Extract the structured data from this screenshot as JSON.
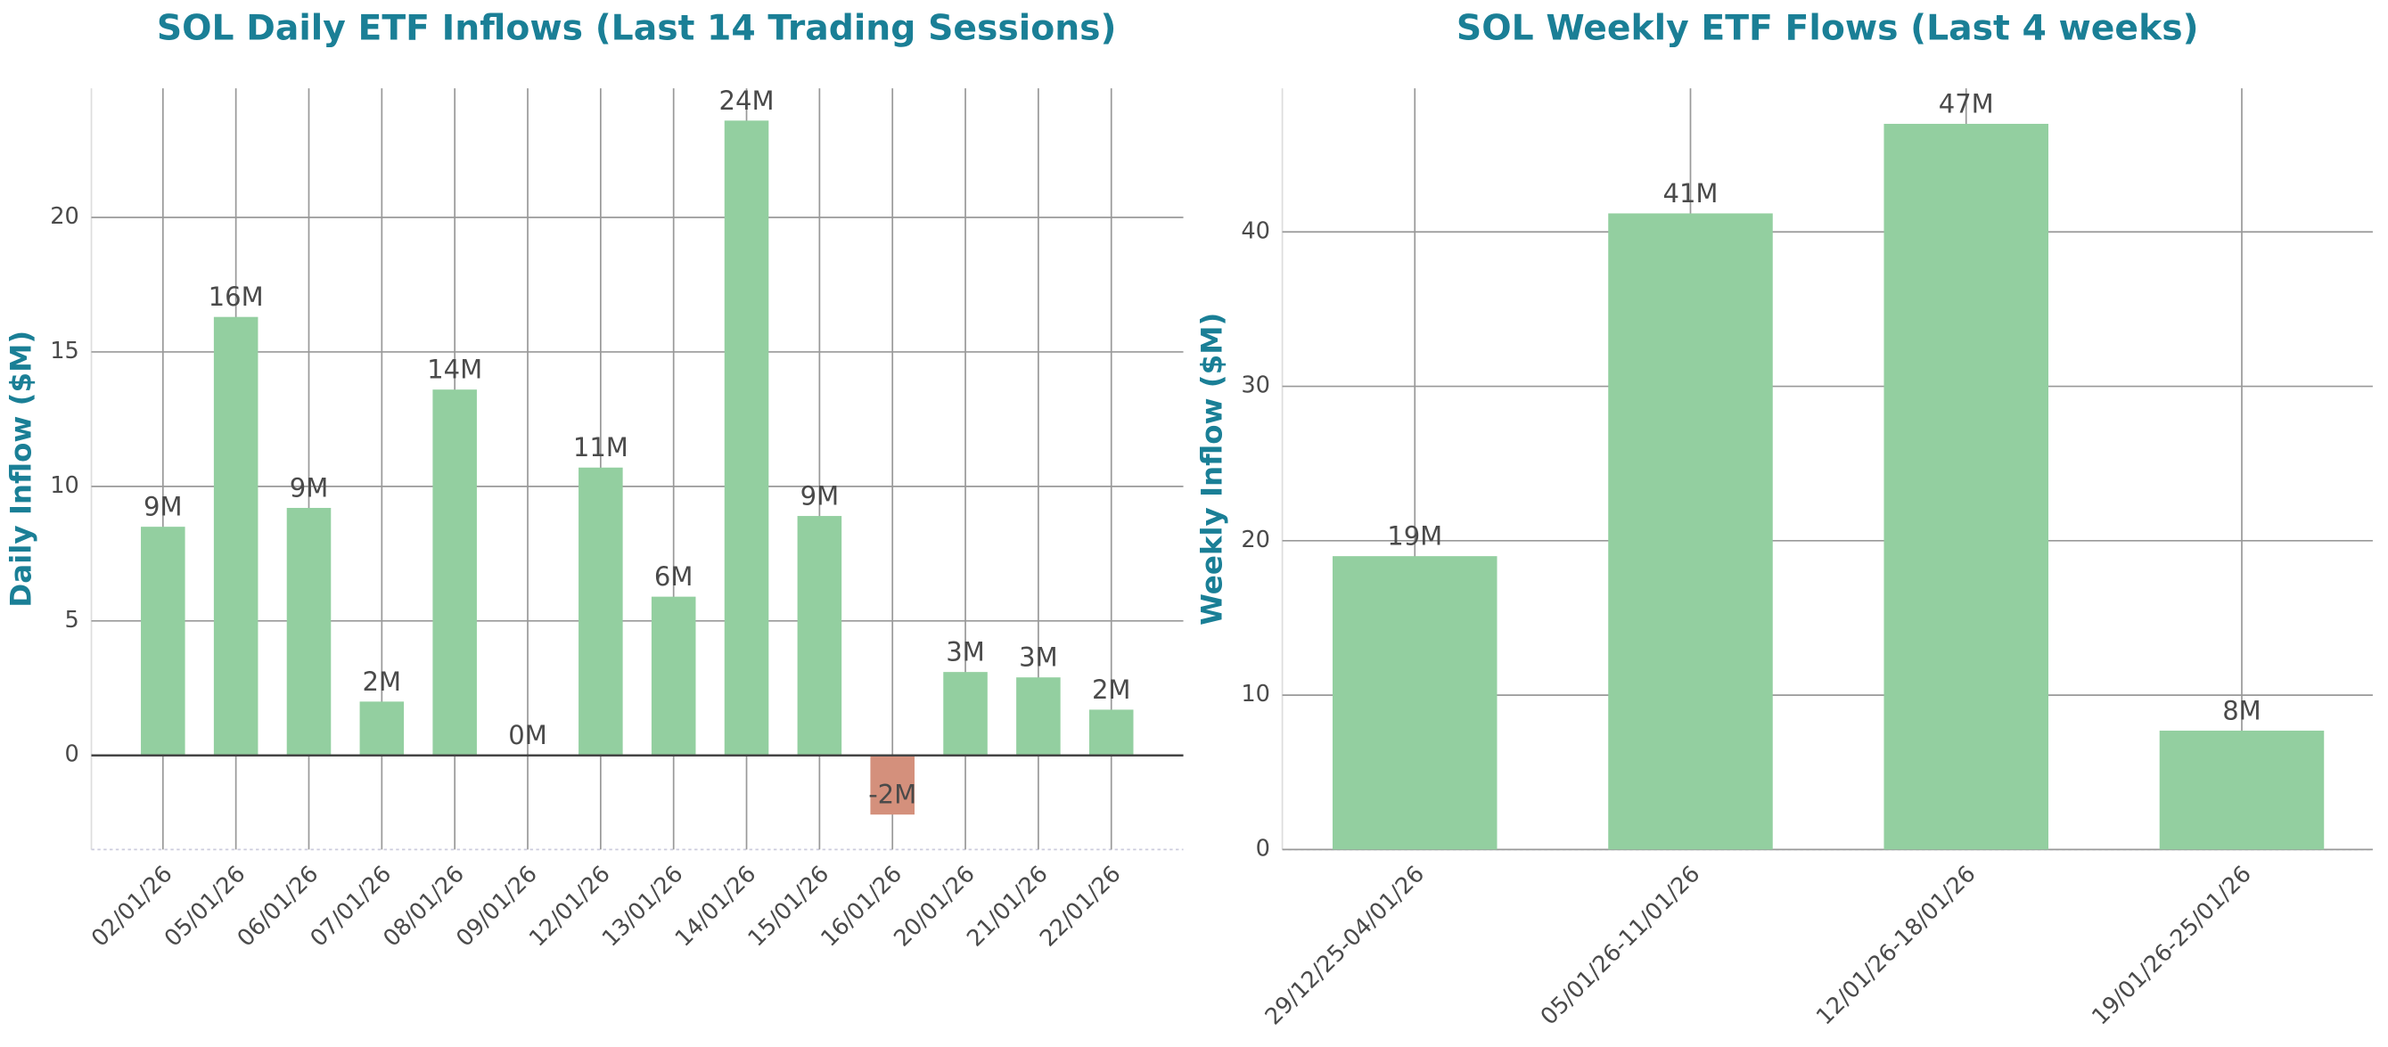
{
  "chart_data": [
    {
      "type": "bar",
      "title": "SOL Daily ETF Inflows (Last 14 Trading Sessions)",
      "y_label": "Daily Inflow ($M)",
      "categories": [
        "02/01/26",
        "05/01/26",
        "06/01/26",
        "07/01/26",
        "08/01/26",
        "09/01/26",
        "12/01/26",
        "13/01/26",
        "14/01/26",
        "15/01/26",
        "16/01/26",
        "20/01/26",
        "21/01/26",
        "22/01/26"
      ],
      "values": [
        8.5,
        16.3,
        9.2,
        2.0,
        13.6,
        0,
        10.7,
        5.9,
        23.6,
        8.9,
        -2.2,
        3.1,
        2.9,
        1.7
      ],
      "value_labels": [
        "9M",
        "16M",
        "9M",
        "2M",
        "14M",
        "0M",
        "11M",
        "6M",
        "24M",
        "9M",
        "-2M",
        "3M",
        "3M",
        "2M"
      ],
      "colors": [
        "#93cfa0",
        "#93cfa0",
        "#93cfa0",
        "#93cfa0",
        "#93cfa0",
        "#93cfa0",
        "#93cfa0",
        "#93cfa0",
        "#93cfa0",
        "#93cfa0",
        "#d4907c",
        "#93cfa0",
        "#93cfa0",
        "#93cfa0"
      ],
      "ylim": [
        -3.5,
        24.8
      ],
      "yticks": [
        0,
        5,
        10,
        15,
        20
      ],
      "grid": true
    },
    {
      "type": "bar",
      "title": "SOL Weekly ETF Flows (Last 4 weeks)",
      "y_label": "Weekly Inflow ($M)",
      "categories": [
        "29/12/25-04/01/26",
        "05/01/26-11/01/26",
        "12/01/26-18/01/26",
        "19/01/26-25/01/26"
      ],
      "values": [
        19.0,
        41.2,
        47.0,
        7.7
      ],
      "value_labels": [
        "19M",
        "41M",
        "47M",
        "8M"
      ],
      "colors": [
        "#93cfa0",
        "#93cfa0",
        "#93cfa0",
        "#93cfa0"
      ],
      "ylim": [
        0,
        49.3
      ],
      "yticks": [
        0,
        10,
        20,
        30,
        40
      ],
      "grid": true
    }
  ]
}
